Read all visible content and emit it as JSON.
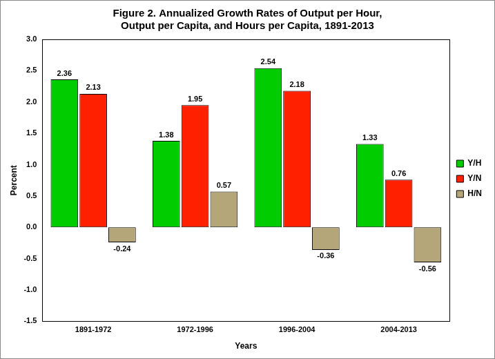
{
  "chart_data": {
    "type": "bar",
    "title": "Figure 2. Annualized Growth Rates of Output per Hour, Output per Capita, and Hours per Capita, 1891-2013",
    "x_label": "Years",
    "y_label": "Percent",
    "categories": [
      "1891-1972",
      "1972-1996",
      "1996-2004",
      "2004-2013"
    ],
    "series": [
      {
        "name": "Y/H",
        "color": "#00CC00",
        "values": [
          2.36,
          1.38,
          2.54,
          1.33
        ]
      },
      {
        "name": "Y/N",
        "color": "#FF2000",
        "values": [
          2.13,
          1.95,
          2.18,
          0.76
        ]
      },
      {
        "name": "H/N",
        "color": "#B5A67A",
        "values": [
          -0.24,
          0.57,
          -0.36,
          -0.56
        ]
      }
    ],
    "ylim": [
      -1.5,
      3.0
    ],
    "yticks": [
      -1.5,
      {
        "value": -1.0,
        "label": "-1.0"
      },
      -0.5,
      {
        "value": 0.0,
        "label": "0.0"
      },
      0.5,
      {
        "value": 1.0,
        "label": "1.0"
      },
      1.5,
      {
        "value": 2.0,
        "label": "2.0"
      },
      2.5,
      {
        "value": 3.0,
        "label": "3.0"
      }
    ],
    "grid": false,
    "legend": "right",
    "data_labels": true
  }
}
